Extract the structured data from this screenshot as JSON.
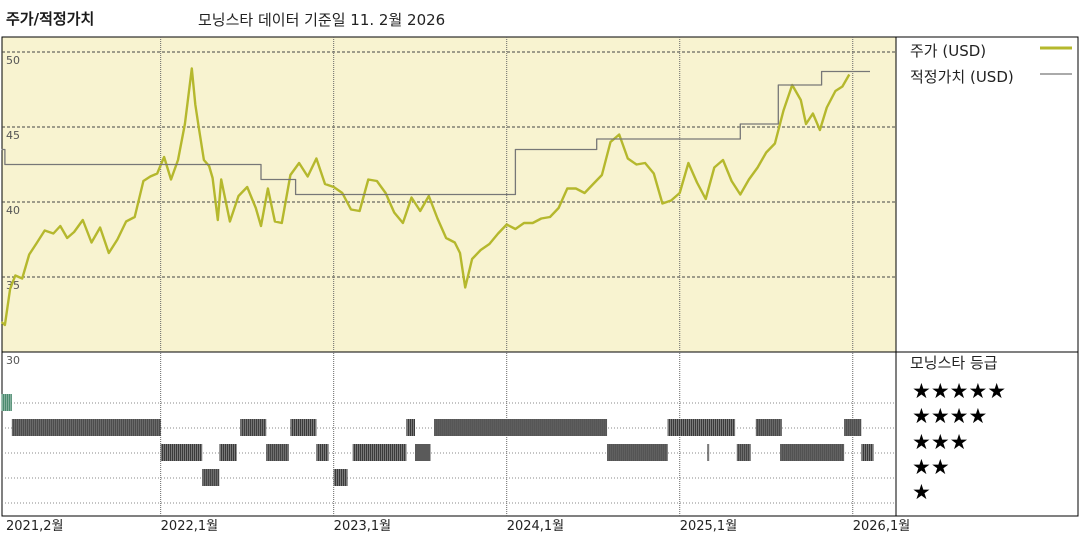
{
  "header": {
    "title": "주가/적정가치",
    "subtitle": "모닝스타 데이터 기준일 11. 2월 2026"
  },
  "legend": {
    "price_label": "주가 (USD)",
    "fair_label": "적정가치 (USD)",
    "price_color": "#b5b82d",
    "fair_color": "#777777"
  },
  "rating_panel": {
    "title": "모닝스타 등급",
    "stars": [
      "★★★★★",
      "★★★★",
      "★★★",
      "★★",
      "★"
    ]
  },
  "chart_data": {
    "type": "line",
    "ylim": [
      30,
      51
    ],
    "y_ticks": [
      "50",
      "45",
      "40",
      "35",
      "30"
    ],
    "y_tick_values": [
      50,
      45,
      40,
      35,
      30
    ],
    "x_labels": [
      "2021,2월",
      "2022,1월",
      "2023,1월",
      "2024,1월",
      "2025,1월",
      "2026,1월"
    ],
    "x_label_dates": [
      2021.083,
      2022.0,
      2023.0,
      2024.0,
      2025.0,
      2026.0
    ],
    "x_range": [
      2021.083,
      2026.25
    ],
    "series": [
      {
        "name": "주가 (USD)",
        "color": "#b5b82d",
        "points": [
          [
            2021.08,
            32.0
          ],
          [
            2021.1,
            31.8
          ],
          [
            2021.13,
            34.2
          ],
          [
            2021.16,
            35.1
          ],
          [
            2021.2,
            34.9
          ],
          [
            2021.24,
            36.5
          ],
          [
            2021.28,
            37.2
          ],
          [
            2021.33,
            38.1
          ],
          [
            2021.38,
            37.9
          ],
          [
            2021.42,
            38.4
          ],
          [
            2021.46,
            37.6
          ],
          [
            2021.5,
            38.0
          ],
          [
            2021.55,
            38.8
          ],
          [
            2021.6,
            37.3
          ],
          [
            2021.65,
            38.3
          ],
          [
            2021.7,
            36.6
          ],
          [
            2021.75,
            37.5
          ],
          [
            2021.8,
            38.7
          ],
          [
            2021.85,
            39.0
          ],
          [
            2021.9,
            41.4
          ],
          [
            2021.94,
            41.7
          ],
          [
            2021.98,
            41.9
          ],
          [
            2022.02,
            43.0
          ],
          [
            2022.06,
            41.5
          ],
          [
            2022.1,
            42.8
          ],
          [
            2022.14,
            45.2
          ],
          [
            2022.18,
            48.9
          ],
          [
            2022.2,
            46.5
          ],
          [
            2022.22,
            45.0
          ],
          [
            2022.25,
            42.8
          ],
          [
            2022.28,
            42.4
          ],
          [
            2022.3,
            41.6
          ],
          [
            2022.33,
            38.8
          ],
          [
            2022.35,
            41.5
          ],
          [
            2022.4,
            38.7
          ],
          [
            2022.45,
            40.4
          ],
          [
            2022.5,
            41.0
          ],
          [
            2022.55,
            39.6
          ],
          [
            2022.58,
            38.4
          ],
          [
            2022.62,
            40.9
          ],
          [
            2022.66,
            38.7
          ],
          [
            2022.7,
            38.6
          ],
          [
            2022.75,
            41.8
          ],
          [
            2022.8,
            42.6
          ],
          [
            2022.85,
            41.7
          ],
          [
            2022.9,
            42.9
          ],
          [
            2022.95,
            41.2
          ],
          [
            2023.0,
            41.0
          ],
          [
            2023.05,
            40.6
          ],
          [
            2023.1,
            39.5
          ],
          [
            2023.15,
            39.4
          ],
          [
            2023.2,
            41.5
          ],
          [
            2023.25,
            41.4
          ],
          [
            2023.3,
            40.6
          ],
          [
            2023.35,
            39.3
          ],
          [
            2023.4,
            38.6
          ],
          [
            2023.45,
            40.3
          ],
          [
            2023.5,
            39.4
          ],
          [
            2023.55,
            40.4
          ],
          [
            2023.6,
            38.9
          ],
          [
            2023.65,
            37.6
          ],
          [
            2023.7,
            37.3
          ],
          [
            2023.73,
            36.6
          ],
          [
            2023.76,
            34.3
          ],
          [
            2023.8,
            36.2
          ],
          [
            2023.85,
            36.8
          ],
          [
            2023.9,
            37.2
          ],
          [
            2023.95,
            37.9
          ],
          [
            2024.0,
            38.5
          ],
          [
            2024.05,
            38.2
          ],
          [
            2024.1,
            38.6
          ],
          [
            2024.15,
            38.6
          ],
          [
            2024.2,
            38.9
          ],
          [
            2024.25,
            39.0
          ],
          [
            2024.3,
            39.6
          ],
          [
            2024.35,
            40.9
          ],
          [
            2024.4,
            40.9
          ],
          [
            2024.45,
            40.6
          ],
          [
            2024.5,
            41.2
          ],
          [
            2024.55,
            41.8
          ],
          [
            2024.6,
            44.0
          ],
          [
            2024.65,
            44.5
          ],
          [
            2024.7,
            42.9
          ],
          [
            2024.75,
            42.5
          ],
          [
            2024.8,
            42.6
          ],
          [
            2024.85,
            41.9
          ],
          [
            2024.9,
            39.9
          ],
          [
            2024.95,
            40.1
          ],
          [
            2025.0,
            40.6
          ],
          [
            2025.05,
            42.6
          ],
          [
            2025.1,
            41.3
          ],
          [
            2025.15,
            40.2
          ],
          [
            2025.2,
            42.3
          ],
          [
            2025.25,
            42.8
          ],
          [
            2025.3,
            41.4
          ],
          [
            2025.35,
            40.5
          ],
          [
            2025.4,
            41.5
          ],
          [
            2025.45,
            42.3
          ],
          [
            2025.5,
            43.3
          ],
          [
            2025.55,
            43.9
          ],
          [
            2025.6,
            46.1
          ],
          [
            2025.65,
            47.8
          ],
          [
            2025.7,
            46.8
          ],
          [
            2025.73,
            45.2
          ],
          [
            2025.77,
            45.9
          ],
          [
            2025.81,
            44.8
          ],
          [
            2025.85,
            46.3
          ],
          [
            2025.9,
            47.4
          ],
          [
            2025.94,
            47.7
          ],
          [
            2025.98,
            48.5
          ]
        ]
      },
      {
        "name": "적정가치 (USD)",
        "color": "#777777",
        "points": [
          [
            2021.08,
            43.5
          ],
          [
            2021.1,
            43.5
          ],
          [
            2021.1,
            42.5
          ],
          [
            2022.58,
            42.5
          ],
          [
            2022.58,
            41.5
          ],
          [
            2022.78,
            41.5
          ],
          [
            2022.78,
            40.5
          ],
          [
            2023.82,
            40.5
          ],
          [
            2023.82,
            40.5
          ],
          [
            2024.05,
            40.5
          ],
          [
            2024.05,
            43.5
          ],
          [
            2024.52,
            43.5
          ],
          [
            2024.52,
            44.2
          ],
          [
            2025.35,
            44.2
          ],
          [
            2025.35,
            45.2
          ],
          [
            2025.57,
            45.2
          ],
          [
            2025.57,
            47.8
          ],
          [
            2025.82,
            47.8
          ],
          [
            2025.82,
            48.7
          ],
          [
            2026.1,
            48.7
          ]
        ]
      }
    ],
    "rating_series": {
      "rows": [
        "★★★★★",
        "★★★★",
        "★★★",
        "★★",
        "★"
      ],
      "segments": [
        {
          "row": 0,
          "start": 2021.08,
          "end": 2021.14,
          "color": "#4a8a6e"
        },
        {
          "row": 1,
          "start": 2021.14,
          "end": 2022.0
        },
        {
          "row": 2,
          "start": 2022.0,
          "end": 2022.24
        },
        {
          "row": 3,
          "start": 2022.24,
          "end": 2022.34
        },
        {
          "row": 2,
          "start": 2022.34,
          "end": 2022.44
        },
        {
          "row": 1,
          "start": 2022.46,
          "end": 2022.61
        },
        {
          "row": 2,
          "start": 2022.61,
          "end": 2022.74
        },
        {
          "row": 1,
          "start": 2022.75,
          "end": 2022.9
        },
        {
          "row": 2,
          "start": 2022.9,
          "end": 2022.97
        },
        {
          "row": 3,
          "start": 2023.0,
          "end": 2023.08
        },
        {
          "row": 2,
          "start": 2023.11,
          "end": 2023.42
        },
        {
          "row": 1,
          "start": 2023.42,
          "end": 2023.47
        },
        {
          "row": 2,
          "start": 2023.47,
          "end": 2023.56
        },
        {
          "row": 1,
          "start": 2023.58,
          "end": 2024.58
        },
        {
          "row": 2,
          "start": 2024.58,
          "end": 2024.93
        },
        {
          "row": 1,
          "start": 2024.93,
          "end": 2025.32
        },
        {
          "row": 2,
          "start": 2025.16,
          "end": 2025.17
        },
        {
          "row": 2,
          "start": 2025.33,
          "end": 2025.41
        },
        {
          "row": 1,
          "start": 2025.44,
          "end": 2025.59
        },
        {
          "row": 2,
          "start": 2025.58,
          "end": 2025.95
        },
        {
          "row": 1,
          "start": 2025.95,
          "end": 2026.05
        },
        {
          "row": 2,
          "start": 2026.05,
          "end": 2026.12
        }
      ]
    },
    "grid": true,
    "legend_position": "top-right"
  }
}
